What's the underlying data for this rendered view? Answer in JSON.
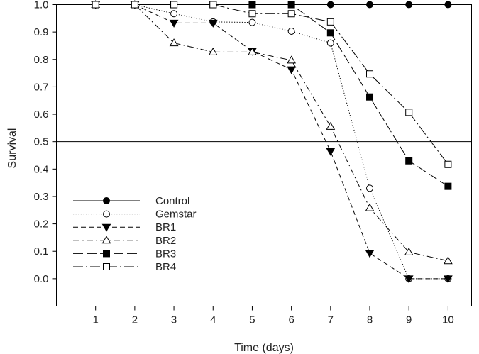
{
  "chart_data": {
    "type": "line",
    "title": "",
    "xlabel": "Time (days)",
    "ylabel": "Survival",
    "x": [
      1,
      2,
      3,
      4,
      5,
      6,
      7,
      8,
      9,
      10
    ],
    "xlim": [
      0,
      10.6
    ],
    "ylim": [
      -0.1,
      1.0
    ],
    "xticks": [
      "1",
      "2",
      "3",
      "4",
      "5",
      "6",
      "7",
      "8",
      "9",
      "10"
    ],
    "yticks": [
      "0.0",
      "0.1",
      "0.2",
      "0.3",
      "0.4",
      "0.5",
      "0.6",
      "0.7",
      "0.8",
      "0.9",
      "1.0"
    ],
    "reference_line": 0.5,
    "grid": false,
    "legend_position": "bottom-left",
    "series": [
      {
        "name": "Control",
        "marker": "circle-filled",
        "dash": "solid",
        "color": "#000000",
        "values": [
          1.0,
          1.0,
          1.0,
          1.0,
          1.0,
          1.0,
          1.0,
          1.0,
          1.0,
          1.0
        ]
      },
      {
        "name": "Gemstar",
        "marker": "circle-open",
        "dash": "dotted",
        "color": "#000000",
        "values": [
          1.0,
          1.0,
          0.967,
          0.937,
          0.935,
          0.903,
          0.86,
          0.33,
          0.0,
          0.0
        ]
      },
      {
        "name": "BR1",
        "marker": "triangle-down-filled",
        "dash": "dashed",
        "color": "#000000",
        "values": [
          1.0,
          1.0,
          0.933,
          0.933,
          0.83,
          0.763,
          0.465,
          0.093,
          0.0,
          0.0
        ]
      },
      {
        "name": "BR2",
        "marker": "triangle-up-open",
        "dash": "dash-dot",
        "color": "#000000",
        "values": [
          1.0,
          1.0,
          0.86,
          0.827,
          0.827,
          0.797,
          0.555,
          0.258,
          0.097,
          0.065
        ]
      },
      {
        "name": "BR3",
        "marker": "square-filled",
        "dash": "long-dash",
        "color": "#000000",
        "values": [
          1.0,
          1.0,
          1.0,
          1.0,
          1.0,
          1.0,
          0.897,
          0.663,
          0.43,
          0.337
        ]
      },
      {
        "name": "BR4",
        "marker": "square-open",
        "dash": "long-dash-dot",
        "color": "#000000",
        "values": [
          1.0,
          1.0,
          1.0,
          1.0,
          0.967,
          0.967,
          0.937,
          0.747,
          0.607,
          0.417
        ]
      }
    ]
  }
}
